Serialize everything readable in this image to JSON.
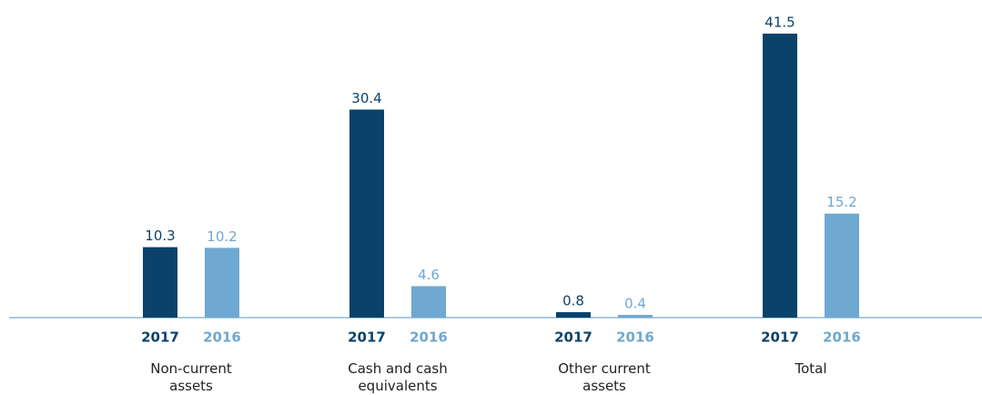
{
  "chart_data": {
    "type": "bar",
    "categories": [
      "Non-current assets",
      "Cash and cash equivalents",
      "Other current assets",
      "Total"
    ],
    "series": [
      {
        "name": "2017",
        "color": "#0b426a",
        "values": [
          10.3,
          30.4,
          0.8,
          41.5
        ]
      },
      {
        "name": "2016",
        "color": "#6fa8d0",
        "values": [
          10.2,
          4.6,
          0.4,
          15.2
        ]
      }
    ]
  }
}
